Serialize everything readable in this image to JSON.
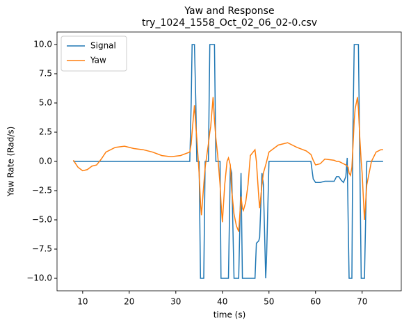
{
  "chart_data": {
    "type": "line",
    "title": [
      "Yaw and Response",
      "try_1024_1558_Oct_02_06_02-0.csv"
    ],
    "xlabel": "time (s)",
    "ylabel": "Yaw Rate (Rad/s)",
    "x": [
      8,
      9,
      10,
      11,
      12,
      13,
      14,
      15,
      17,
      19,
      21,
      23,
      25,
      27,
      29,
      31,
      33,
      33.3,
      33.5,
      34,
      34.3,
      34.5,
      35,
      35.3,
      35.5,
      36,
      36.3,
      37,
      37.3,
      37.5,
      38,
      38.3,
      38.6,
      39,
      39.5,
      39.7,
      40,
      40.5,
      41,
      41.3,
      41.7,
      42,
      42.5,
      43,
      43.5,
      44,
      44.3,
      44.5,
      45,
      45.5,
      46,
      47,
      47.3,
      47.8,
      48,
      48.5,
      48.8,
      49.3,
      49.5,
      50,
      52,
      54,
      56,
      58,
      59,
      59.5,
      60,
      61,
      62,
      64,
      64.5,
      65,
      65.5,
      66,
      66.5,
      66.8,
      67,
      67.2,
      67.5,
      67.8,
      68,
      68.3,
      68.5,
      69,
      69.2,
      69.5,
      69.8,
      70,
      70.5,
      71,
      72,
      73,
      74,
      74.5
    ],
    "series": [
      {
        "name": "Signal",
        "color": "#1f77b4",
        "values": [
          0,
          0,
          0,
          0,
          0,
          0,
          0,
          0,
          0,
          0,
          0,
          0,
          0,
          0,
          0,
          0,
          0,
          5,
          10,
          10,
          5,
          0,
          0,
          -10,
          -10,
          -10,
          0,
          0,
          10,
          10,
          10,
          10,
          0,
          0,
          0,
          -10,
          -10,
          -10,
          -10,
          -10,
          -0.5,
          -1,
          -10,
          -10,
          -10,
          -1,
          -10,
          -10,
          -10,
          -10,
          -10,
          -10,
          -7,
          -6.8,
          -6.5,
          -1,
          -2,
          -10,
          -8,
          0,
          0,
          0,
          0,
          0,
          0,
          -1.5,
          -1.8,
          -1.8,
          -1.7,
          -1.7,
          -1.3,
          -1.3,
          -1.6,
          -1.8,
          -1.3,
          0.3,
          -5,
          -10,
          -10,
          -10,
          2,
          10,
          10,
          10,
          10,
          0,
          -10,
          -10,
          -10,
          0,
          0,
          0,
          0,
          0
        ]
      },
      {
        "name": "Yaw",
        "color": "#ff7f0e",
        "values": [
          0.1,
          -0.5,
          -0.8,
          -0.7,
          -0.4,
          -0.3,
          0.2,
          0.8,
          1.2,
          1.3,
          1.1,
          1,
          0.8,
          0.5,
          0.4,
          0.5,
          0.8,
          1.5,
          2.5,
          4.8,
          3,
          2,
          -1,
          -3.5,
          -4.6,
          -2,
          -0.5,
          1.5,
          2.5,
          3,
          5.5,
          3.5,
          2,
          0.5,
          -2,
          -3.5,
          -5.2,
          -2,
          0,
          0.3,
          -0.3,
          -2.5,
          -4.5,
          -5.5,
          -6,
          -3,
          -4,
          -4.2,
          -3.5,
          -2,
          0.5,
          1,
          0,
          -3,
          -4,
          -2,
          -1,
          -0.3,
          0,
          0.8,
          1.4,
          1.6,
          1.2,
          0.9,
          0.6,
          0.1,
          -0.3,
          -0.2,
          0.2,
          0.1,
          0,
          0,
          -0.1,
          -0.2,
          -0.3,
          -0.4,
          -0.5,
          -1,
          -1.2,
          -0.5,
          1,
          3.5,
          4.5,
          5.5,
          4.5,
          2,
          0,
          -1,
          -5,
          -2,
          0,
          0.8,
          1,
          1
        ]
      }
    ],
    "xlim": [
      4.5,
      78.4
    ],
    "ylim": [
      -11.07,
      11.07
    ],
    "xticks": [
      10,
      20,
      30,
      40,
      50,
      60,
      70
    ],
    "yticks": [
      {
        "value": 10,
        "label": "10.0"
      },
      7.5,
      {
        "value": 5,
        "label": "5.0"
      },
      2.5,
      {
        "value": 0,
        "label": "0.0"
      },
      {
        "value": -2.5,
        "label": "−2.5"
      },
      {
        "value": -5,
        "label": "−5.0"
      },
      {
        "value": -7.5,
        "label": "−7.5"
      },
      {
        "value": -10,
        "label": "−10.0"
      }
    ],
    "legend": "upper left"
  }
}
